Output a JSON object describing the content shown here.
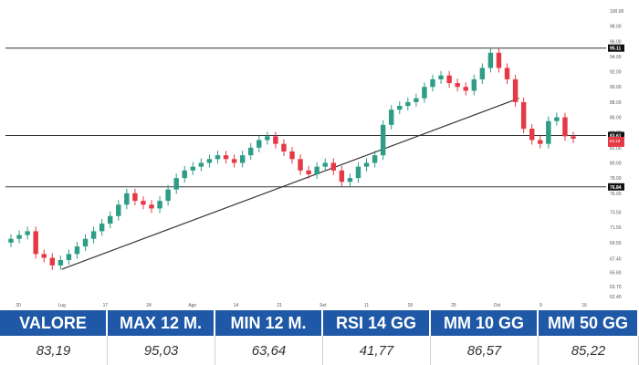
{
  "chart_data": {
    "type": "candlestick",
    "y_ticks": [
      "62.40",
      "63.70",
      "65.60",
      "67.40",
      "69.50",
      "71.50",
      "73.50",
      "76.00",
      "78.00",
      "80.00",
      "82.00",
      "84.00",
      "86.00",
      "88.00",
      "90.00",
      "92.00",
      "94.00",
      "96.00",
      "98.00",
      "100.00"
    ],
    "x_ticks": [
      "20",
      "Lug",
      "17",
      "24",
      "Ago",
      "14",
      "21",
      "Set",
      "11",
      "18",
      "25",
      "Oct",
      "9",
      "16"
    ],
    "horizontal_levels": [
      {
        "value": 95.11,
        "label": "95.11"
      },
      {
        "value": 83.61,
        "label": "83.61"
      },
      {
        "value": 76.84,
        "label": "76.84"
      }
    ],
    "current_price_label": "83.19",
    "trendline": {
      "start": [
        "Lug",
        66.0
      ],
      "end": [
        "Oct+",
        88.5
      ]
    },
    "approx_closes": [
      70.0,
      70.5,
      71.0,
      68.0,
      67.5,
      66.5,
      67.2,
      68.0,
      69.0,
      70.0,
      71.0,
      72.0,
      73.0,
      74.5,
      76.0,
      75.0,
      74.5,
      74.0,
      75.0,
      76.5,
      78.0,
      79.0,
      79.5,
      80.0,
      80.5,
      81.0,
      80.5,
      80.0,
      81.0,
      82.0,
      83.0,
      83.5,
      82.5,
      81.5,
      80.5,
      79.0,
      78.5,
      79.5,
      80.0,
      79.0,
      77.5,
      78.0,
      79.5,
      80.0,
      81.0,
      85.0,
      87.0,
      87.5,
      88.0,
      88.5,
      90.0,
      91.0,
      91.5,
      90.5,
      90.0,
      89.5,
      91.0,
      92.5,
      94.5,
      92.5,
      91.0,
      88.0,
      84.5,
      83.0,
      82.5,
      85.5,
      86.0,
      83.5,
      83.19
    ]
  },
  "stats": {
    "headers": [
      "VALORE",
      "MAX 12 M.",
      "MIN 12 M.",
      "RSI 14 GG",
      "MM 10 GG",
      "MM 50 GG"
    ],
    "values": [
      "83,19",
      "95,03",
      "63,64",
      "41,77",
      "86,57",
      "85,22"
    ]
  },
  "colors": {
    "up": "#2e9c86",
    "down": "#e53945",
    "line": "#333333",
    "header_bg": "#1f58a6",
    "level_label_bg": "#111111",
    "price_label_bg": "#e53945"
  }
}
